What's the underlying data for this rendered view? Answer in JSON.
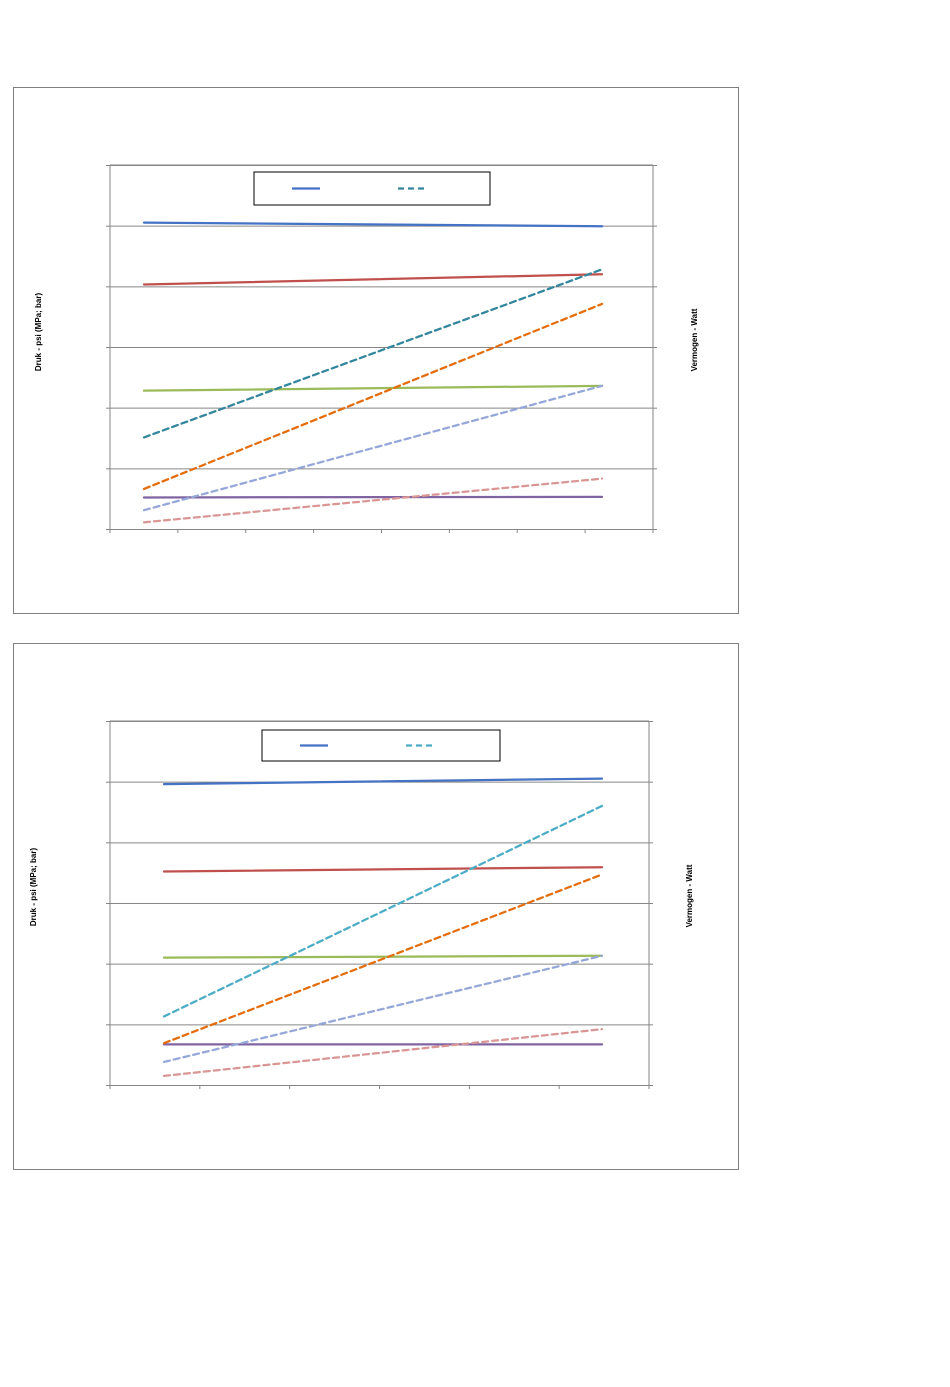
{
  "charts": [
    {
      "ylabel": "Druk - psi (MPa; bar)",
      "y2label": "Vermogen - Watt"
    },
    {
      "ylabel": "Druk - psi (MPa; bar)",
      "y2label": "Vermogen - Watt"
    }
  ],
  "chart_data": [
    {
      "type": "line",
      "grid": true,
      "legend": "top-center",
      "ylabel": "Druk - psi (MPa; bar)",
      "y2label": "Vermogen - Watt",
      "x": [
        0,
        1
      ],
      "ylim": [
        0,
        6
      ],
      "series": [
        {
          "style": "solid",
          "color": "#4472c4",
          "values": [
            5.05,
            4.99
          ]
        },
        {
          "style": "solid",
          "color": "#c0504d",
          "values": [
            4.03,
            4.2
          ]
        },
        {
          "style": "solid",
          "color": "#9bbb59",
          "values": [
            2.28,
            2.36
          ]
        },
        {
          "style": "solid",
          "color": "#8064a2",
          "values": [
            0.52,
            0.53
          ]
        },
        {
          "style": "dashed",
          "color": "#31859c",
          "values": [
            1.51,
            4.28
          ]
        },
        {
          "style": "dashed",
          "color": "#e46c0a",
          "values": [
            0.66,
            3.71
          ]
        },
        {
          "style": "dashed",
          "color": "#95a7d8",
          "values": [
            0.31,
            2.36
          ]
        },
        {
          "style": "dashed",
          "color": "#d99694",
          "values": [
            0.11,
            0.83
          ]
        }
      ]
    },
    {
      "type": "line",
      "grid": true,
      "legend": "top-center",
      "ylabel": "Druk - psi (MPa; bar)",
      "y2label": "Vermogen - Watt",
      "x": [
        0,
        1
      ],
      "ylim": [
        0,
        6
      ],
      "series": [
        {
          "style": "solid",
          "color": "#4472c4",
          "values": [
            4.96,
            5.05
          ]
        },
        {
          "style": "solid",
          "color": "#c0504d",
          "values": [
            3.52,
            3.59
          ]
        },
        {
          "style": "solid",
          "color": "#9bbb59",
          "values": [
            2.1,
            2.13
          ]
        },
        {
          "style": "solid",
          "color": "#8064a2",
          "values": [
            0.67,
            0.67
          ]
        },
        {
          "style": "dashed",
          "color": "#4bacc6",
          "values": [
            1.13,
            4.6
          ]
        },
        {
          "style": "dashed",
          "color": "#e46c0a",
          "values": [
            0.69,
            3.47
          ]
        },
        {
          "style": "dashed",
          "color": "#95a7d8",
          "values": [
            0.38,
            2.13
          ]
        },
        {
          "style": "dashed",
          "color": "#d99694",
          "values": [
            0.15,
            0.92
          ]
        }
      ]
    }
  ]
}
